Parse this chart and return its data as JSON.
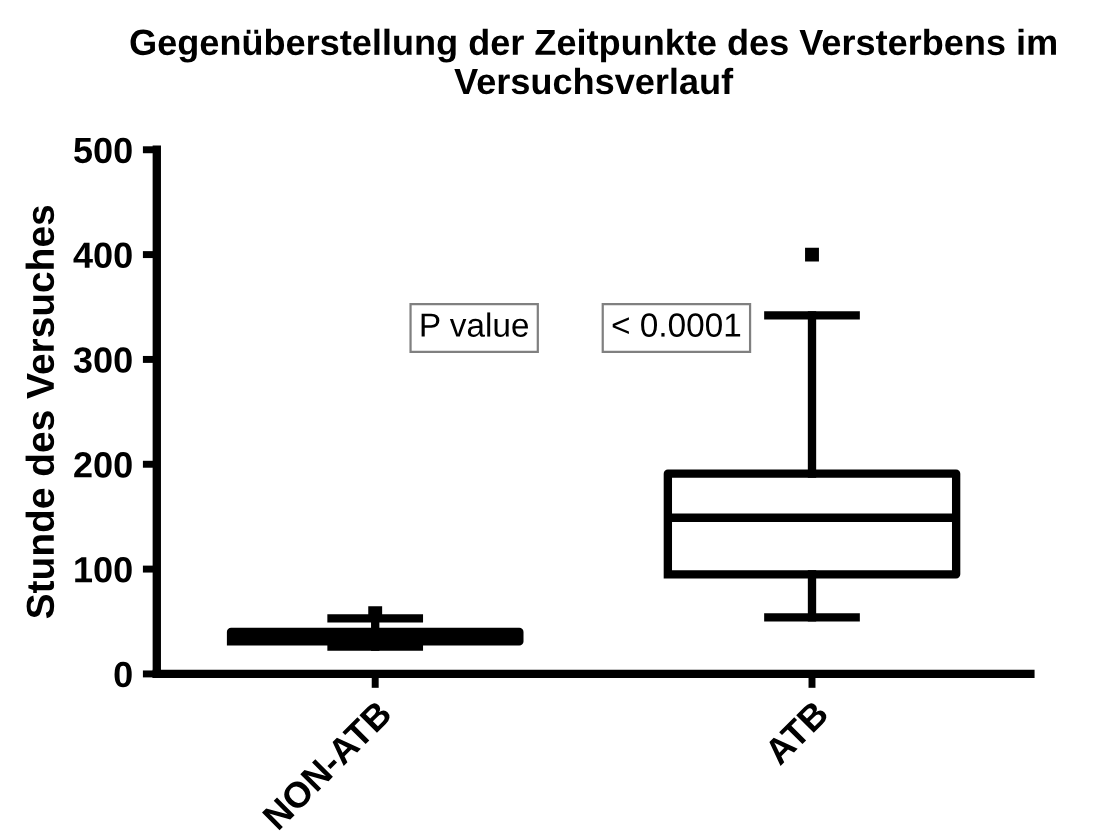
{
  "chart_data": {
    "type": "box",
    "title": "Gegenüberstellung der Zeitpunkte des Versterbens im Versuchsverlauf",
    "ylabel": "Stunde des Versuches",
    "categories": [
      "NON-ATB",
      "ATB"
    ],
    "boxes": [
      {
        "low": 26,
        "q1": 31,
        "median": 36,
        "q3": 40,
        "high": 53,
        "outliers": [
          58
        ]
      },
      {
        "low": 54,
        "q1": 95,
        "median": 149,
        "q3": 191,
        "high": 342,
        "outliers": [
          400
        ]
      }
    ],
    "ylim": [
      0,
      500
    ],
    "yticks": [
      0,
      100,
      200,
      300,
      400,
      500
    ],
    "grid": false,
    "annotations": [
      "P value",
      "< 0.0001"
    ]
  }
}
